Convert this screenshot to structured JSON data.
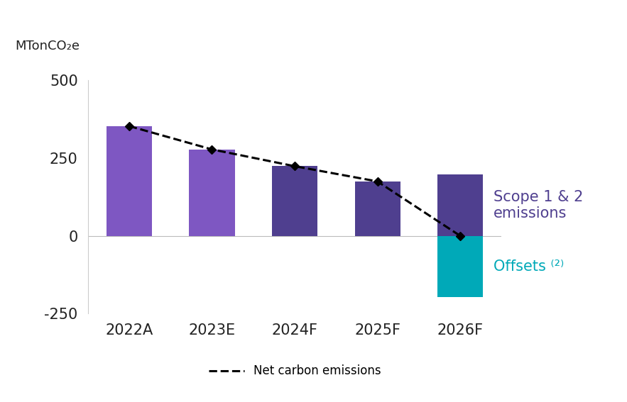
{
  "chart_data": {
    "type": "bar",
    "stacked": true,
    "y_label": "MTonCO₂e",
    "categories": [
      "2022A",
      "2023E",
      "2024F",
      "2025F",
      "2026F"
    ],
    "series": [
      {
        "name": "Scope 1 & 2 emissions",
        "type": "bar",
        "colors": [
          "#7e57c2",
          "#7e57c2",
          "#4f3f8f",
          "#4f3f8f",
          "#4f3f8f"
        ],
        "color": "#4f3f8f",
        "values": [
          353,
          278,
          224,
          175,
          198
        ]
      },
      {
        "name": "Offsets ⁽²⁾",
        "type": "bar",
        "color": "#00a9b8",
        "values": [
          null,
          null,
          null,
          null,
          -198
        ]
      },
      {
        "name": "Net carbon emissions",
        "type": "line",
        "color": "#000000",
        "line_style": "dashed",
        "marker": "diamond",
        "values": [
          353,
          278,
          224,
          175,
          0
        ]
      }
    ],
    "ylim": [
      -250,
      500
    ],
    "yticks": [
      -250,
      0,
      250,
      500
    ],
    "grid": false,
    "legend": "lower center"
  }
}
